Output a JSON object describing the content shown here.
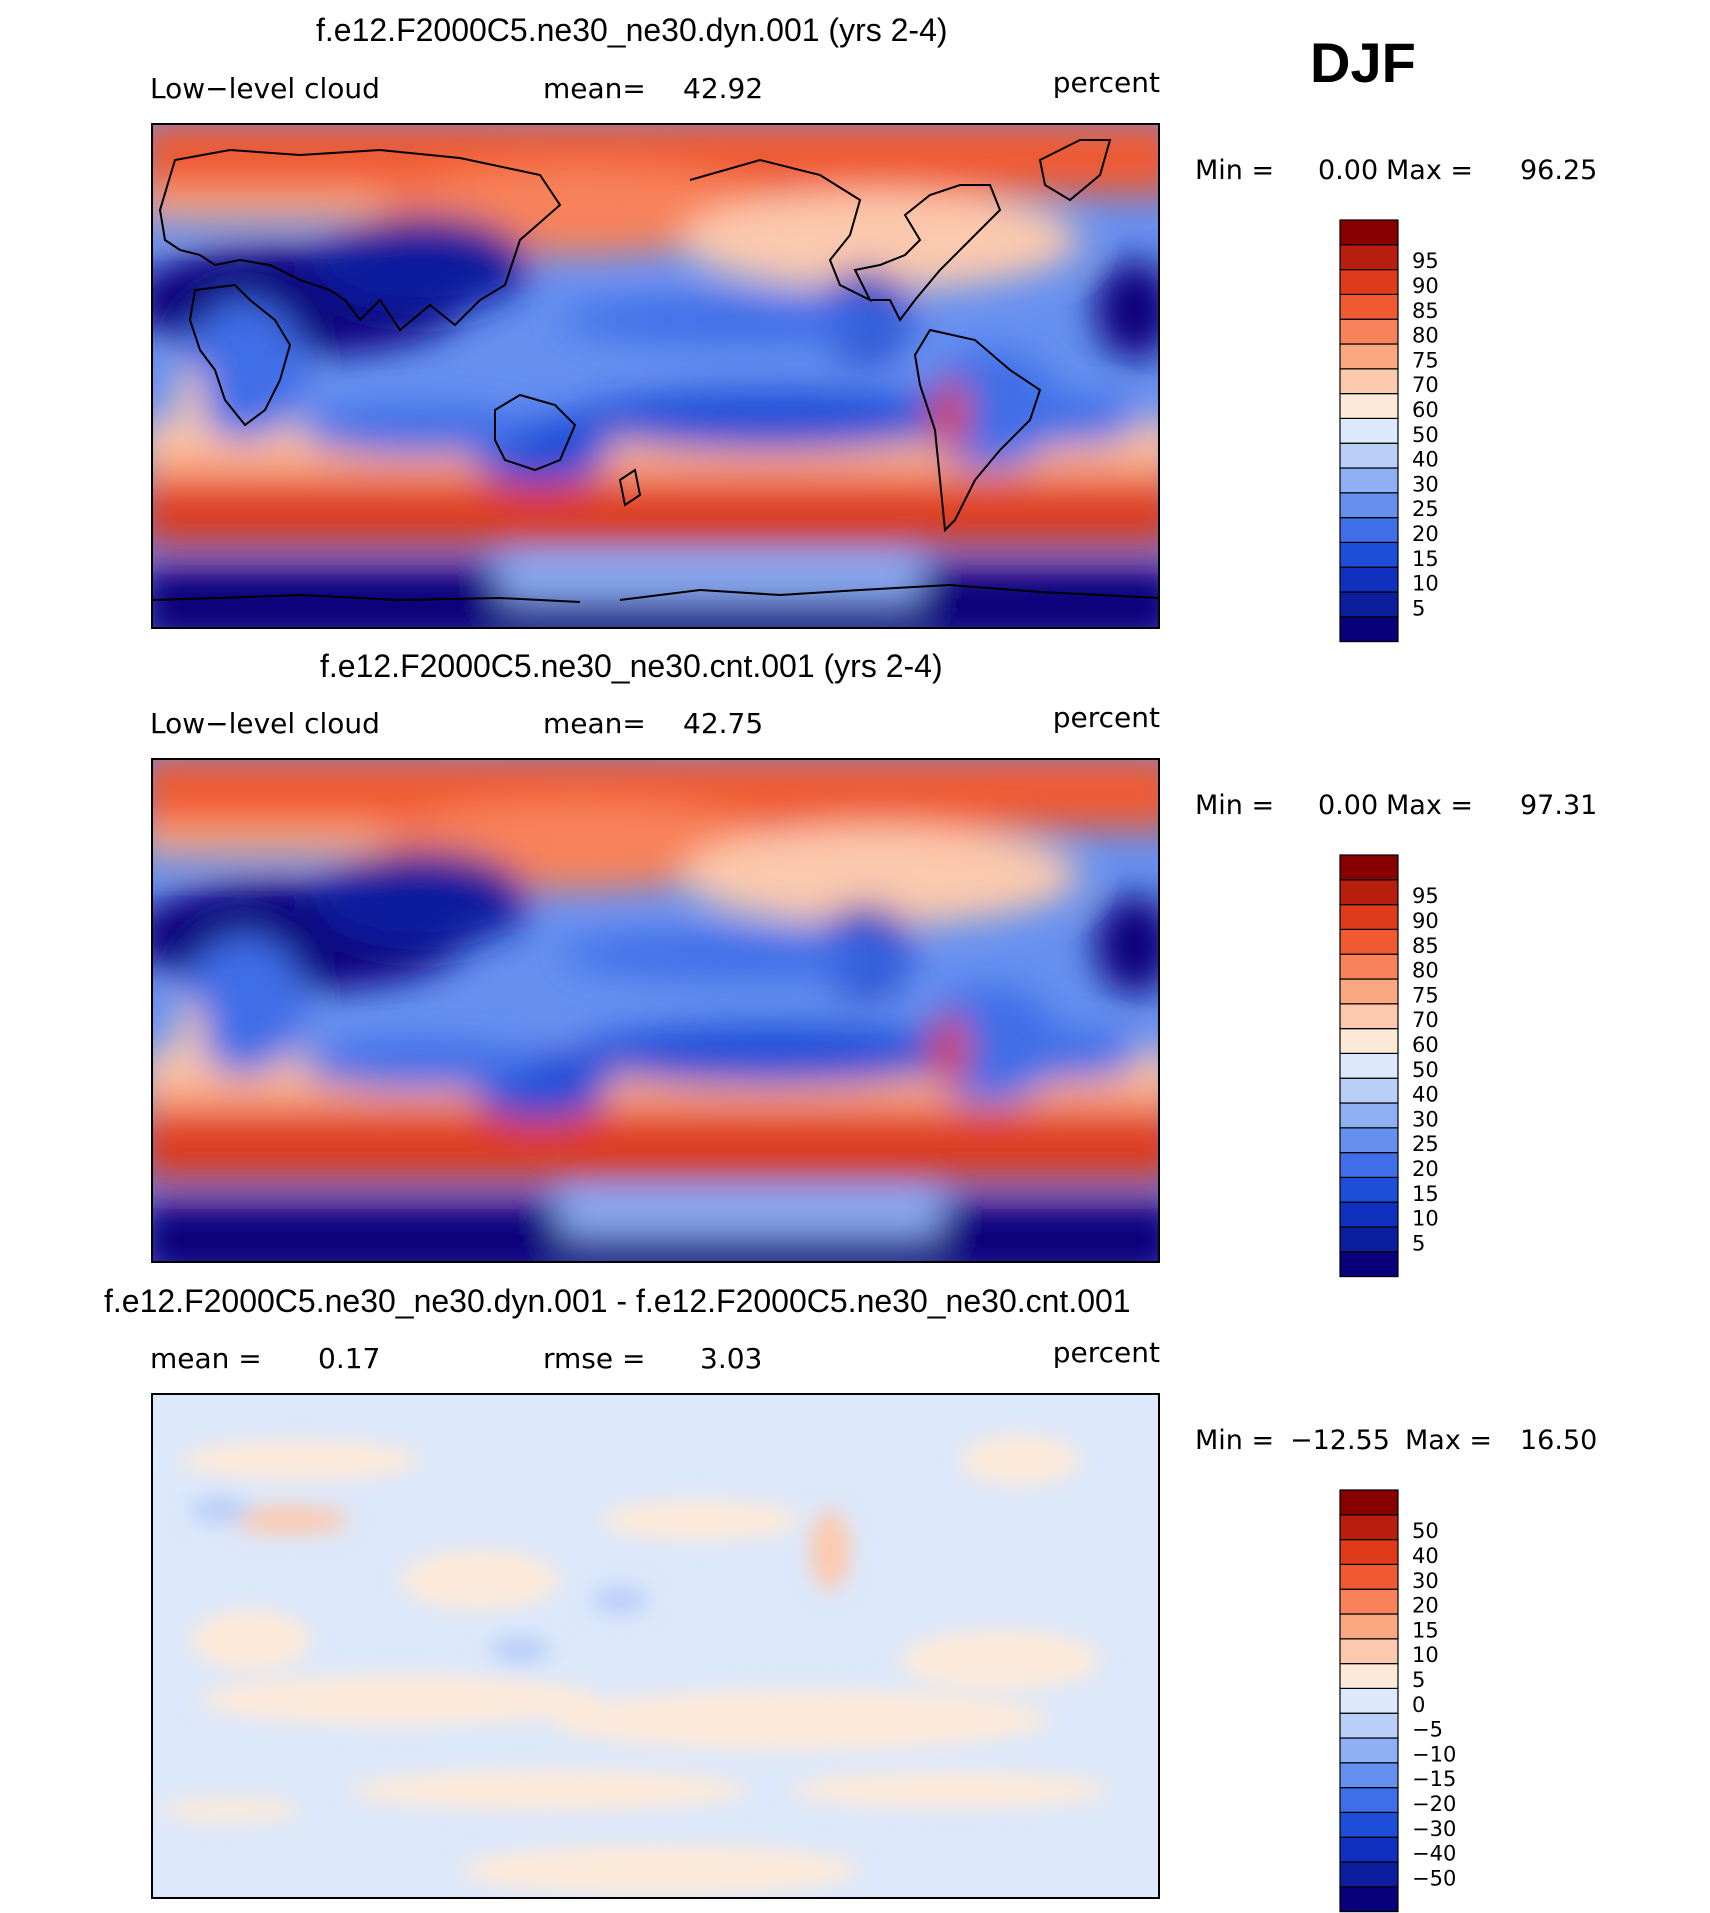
{
  "season": "DJF",
  "panels": [
    {
      "title": "f.e12.F2000C5.ne30_ne30.dyn.001 (yrs 2-4)",
      "left_label": "Low−level cloud",
      "mid_key": "mean=",
      "mid_value": "42.92",
      "units": "percent",
      "min_key": "Min =",
      "min_value": "0.00",
      "max_key": "Max =",
      "max_value": "96.25",
      "colorbar": {
        "colors": [
          "#08007a",
          "#0a1e9e",
          "#1030c0",
          "#1e4ed8",
          "#3f6ee8",
          "#6690f0",
          "#8fb0f5",
          "#b9cff8",
          "#dce8fb",
          "#fde9d8",
          "#fcc9ad",
          "#fba882",
          "#f8825a",
          "#ef5a32",
          "#df3a1a",
          "#b81e0e",
          "#880000"
        ],
        "labels": [
          "5",
          "10",
          "15",
          "20",
          "25",
          "30",
          "40",
          "50",
          "60",
          "70",
          "75",
          "80",
          "85",
          "90",
          "95"
        ]
      }
    },
    {
      "title": "f.e12.F2000C5.ne30_ne30.cnt.001 (yrs 2-4)",
      "left_label": "Low−level cloud",
      "mid_key": "mean=",
      "mid_value": "42.75",
      "units": "percent",
      "min_key": "Min =",
      "min_value": "0.00",
      "max_key": "Max =",
      "max_value": "97.31",
      "colorbar": {
        "colors": [
          "#08007a",
          "#0a1e9e",
          "#1030c0",
          "#1e4ed8",
          "#3f6ee8",
          "#6690f0",
          "#8fb0f5",
          "#b9cff8",
          "#dce8fb",
          "#fde9d8",
          "#fcc9ad",
          "#fba882",
          "#f8825a",
          "#ef5a32",
          "#df3a1a",
          "#b81e0e",
          "#880000"
        ],
        "labels": [
          "5",
          "10",
          "15",
          "20",
          "25",
          "30",
          "40",
          "50",
          "60",
          "70",
          "75",
          "80",
          "85",
          "90",
          "95"
        ]
      }
    },
    {
      "title": "f.e12.F2000C5.ne30_ne30.dyn.001 - f.e12.F2000C5.ne30_ne30.cnt.001",
      "left_label": "mean =",
      "left_value": "0.17",
      "mid_key": "rmse =",
      "mid_value": "3.03",
      "units": "percent",
      "min_key": "Min =",
      "min_value": "−12.55",
      "max_key": "Max =",
      "max_value": "16.50",
      "colorbar": {
        "colors": [
          "#08007a",
          "#0a1e9e",
          "#1030c0",
          "#1e4ed8",
          "#3f6ee8",
          "#6690f0",
          "#8fb0f5",
          "#b9cff8",
          "#dce8fb",
          "#fde9d8",
          "#fcc9ad",
          "#fba882",
          "#f8825a",
          "#ef5a32",
          "#df3a1a",
          "#b81e0e",
          "#880000"
        ],
        "labels": [
          "−50",
          "−40",
          "−30",
          "−20",
          "−15",
          "−10",
          "−5",
          "0",
          "5",
          "10",
          "15",
          "20",
          "30",
          "40",
          "50"
        ]
      }
    }
  ]
}
